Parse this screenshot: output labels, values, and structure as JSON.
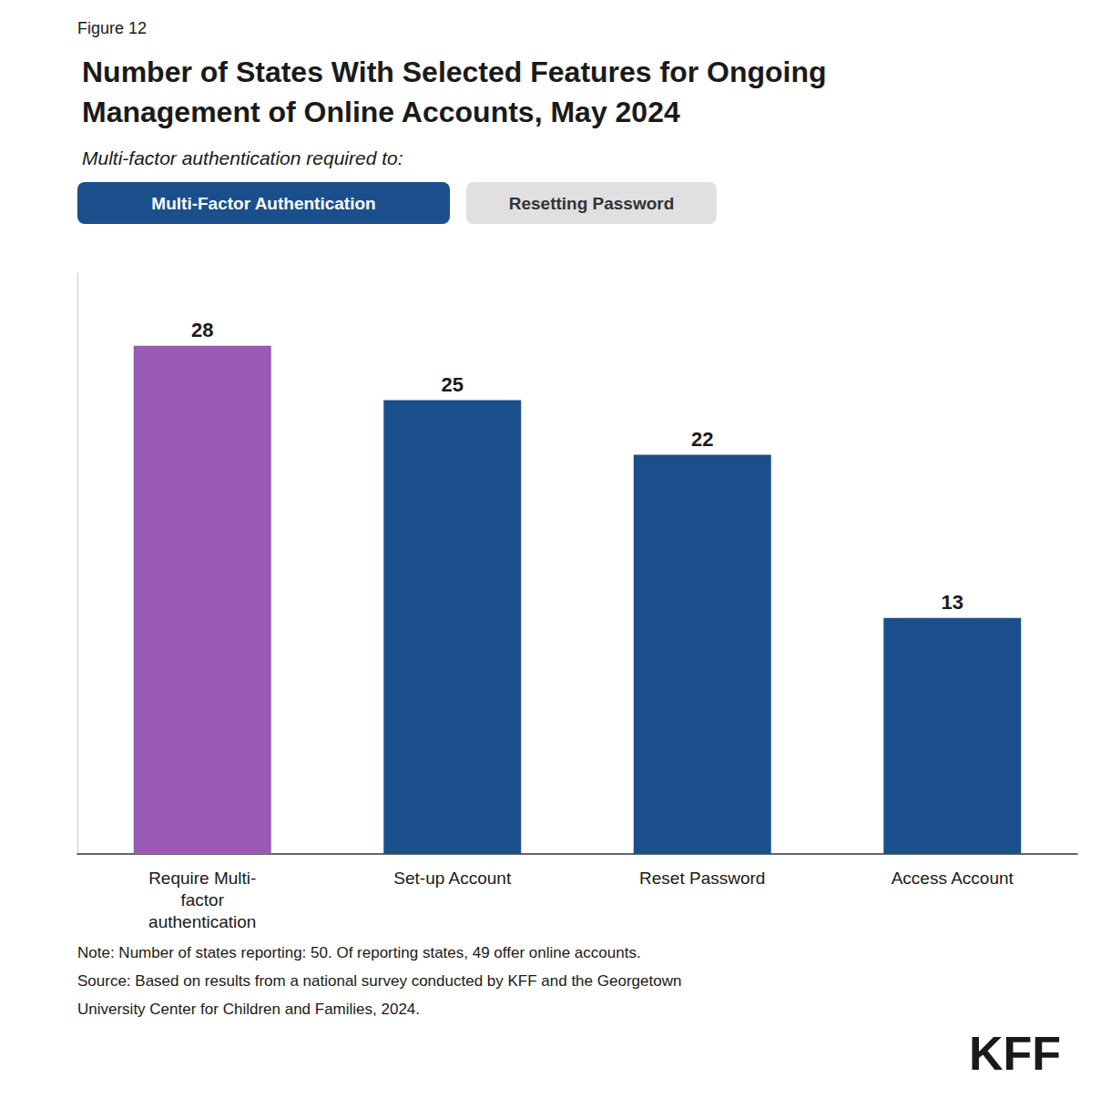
{
  "chart_data": {
    "type": "bar",
    "title": "Number of States With Selected Features for Ongoing\nManagement of Online Accounts, May 2024",
    "subtitle": "Multi-factor authentication required to:",
    "categories": [
      "Require Multi-\nfactor\nauthentication",
      "Set-up Account",
      "Reset Password",
      "Access Account"
    ],
    "values": [
      28,
      25,
      22,
      13
    ],
    "colors": [
      "#9b59b6",
      "#1b4f8c",
      "#1b4f8c",
      "#1b4f8c"
    ],
    "ylim": [
      0,
      32
    ],
    "grid": false,
    "data_labels": true,
    "tick_labels": "x",
    "annotations": [
      {
        "text": "Figure 12"
      },
      {
        "text": "Multi-Factor Authentication",
        "color": "#ffffff",
        "background": "#1b4f8c"
      },
      {
        "text": "Resetting Password",
        "color": "#333333",
        "background": "#e0e0e0"
      },
      {
        "text": "Note: Number of states reporting: 50. Of reporting states, 49 offer online accounts."
      },
      {
        "text": "Source: Based on results from a national survey conducted by KFF and the Georgetown"
      },
      {
        "text": "University Center for Children and Families, 2024."
      },
      {
        "text": "KFF"
      }
    ]
  }
}
